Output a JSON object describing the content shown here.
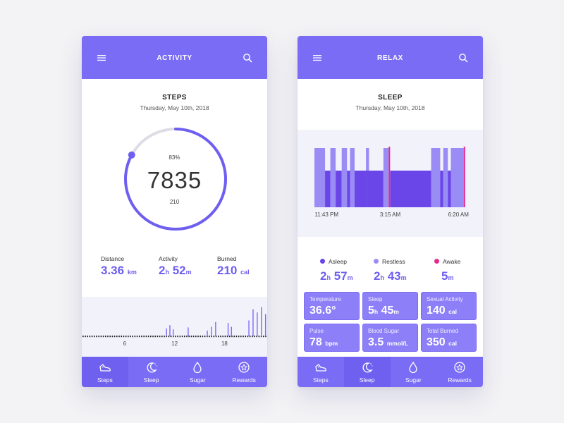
{
  "colors": {
    "accent": "#7b6cf6",
    "value": "#6e5ff0",
    "awake": "#e52a8c",
    "asleep": "#6a45e8",
    "restless": "#9a8cf5"
  },
  "activity": {
    "title": "ACTIVITY",
    "section_title": "STEPS",
    "date": "Thursday, May 10th, 2018",
    "ring": {
      "percent_label": "83%",
      "value": "7835",
      "sub": "210",
      "progress": 0.83
    },
    "stats": [
      {
        "label": "Distance",
        "value": "3.36",
        "unit": "km"
      },
      {
        "label": "Activity",
        "h": "2",
        "h_unit": "h",
        "m": "52",
        "m_unit": "m"
      },
      {
        "label": "Burned",
        "value": "210",
        "unit": "cal"
      }
    ],
    "chart": {
      "ticks": [
        "6",
        "12",
        "18"
      ],
      "bars": [
        {
          "hour": 10.3,
          "v": 0.25
        },
        {
          "hour": 10.7,
          "v": 0.35
        },
        {
          "hour": 11.1,
          "v": 0.22
        },
        {
          "hour": 12.9,
          "v": 0.28
        },
        {
          "hour": 15.2,
          "v": 0.18
        },
        {
          "hour": 15.7,
          "v": 0.3
        },
        {
          "hour": 16.2,
          "v": 0.45
        },
        {
          "hour": 17.7,
          "v": 0.42
        },
        {
          "hour": 18.1,
          "v": 0.3
        },
        {
          "hour": 20.2,
          "v": 0.5
        },
        {
          "hour": 20.7,
          "v": 0.85
        },
        {
          "hour": 21.2,
          "v": 0.75
        },
        {
          "hour": 21.7,
          "v": 0.92
        },
        {
          "hour": 22.2,
          "v": 0.7
        },
        {
          "hour": 22.7,
          "v": 0.78
        },
        {
          "hour": 23.2,
          "v": 0.65
        }
      ]
    }
  },
  "relax": {
    "title": "RELAX",
    "section_title": "SLEEP",
    "date": "Thursday, May 10th, 2018",
    "chart": {
      "ticks": [
        "11:43 PM",
        "3:15 AM",
        "6:20 AM"
      ],
      "segments": [
        {
          "from": 0.0,
          "to": 0.07,
          "state": "restless"
        },
        {
          "from": 0.07,
          "to": 0.105,
          "state": "asleep"
        },
        {
          "from": 0.105,
          "to": 0.14,
          "state": "restless"
        },
        {
          "from": 0.14,
          "to": 0.18,
          "state": "asleep"
        },
        {
          "from": 0.18,
          "to": 0.215,
          "state": "restless"
        },
        {
          "from": 0.215,
          "to": 0.235,
          "state": "asleep"
        },
        {
          "from": 0.235,
          "to": 0.265,
          "state": "restless"
        },
        {
          "from": 0.265,
          "to": 0.34,
          "state": "asleep"
        },
        {
          "from": 0.34,
          "to": 0.36,
          "state": "restless"
        },
        {
          "from": 0.36,
          "to": 0.34,
          "state": "asleep"
        },
        {
          "from": 0.34,
          "to": 0.455,
          "state": "asleep"
        },
        {
          "from": 0.455,
          "to": 0.49,
          "state": "restless"
        },
        {
          "from": 0.49,
          "to": 0.5,
          "state": "awake"
        },
        {
          "from": 0.5,
          "to": 0.77,
          "state": "asleep"
        },
        {
          "from": 0.77,
          "to": 0.83,
          "state": "restless"
        },
        {
          "from": 0.83,
          "to": 0.85,
          "state": "asleep"
        },
        {
          "from": 0.85,
          "to": 0.88,
          "state": "restless"
        },
        {
          "from": 0.88,
          "to": 0.9,
          "state": "asleep"
        },
        {
          "from": 0.9,
          "to": 0.985,
          "state": "restless"
        },
        {
          "from": 0.985,
          "to": 1.0,
          "state": "awake"
        }
      ]
    },
    "legend": [
      {
        "label": "Asleep",
        "h": "2",
        "h_unit": "h",
        "m": "57",
        "m_unit": "m",
        "color": "#6a45e8"
      },
      {
        "label": "Restless",
        "h": "2",
        "h_unit": "h",
        "m": "43",
        "m_unit": "m",
        "color": "#9a8cf5"
      },
      {
        "label": "Awake",
        "h": "",
        "h_unit": "",
        "m": "5",
        "m_unit": "m",
        "color": "#e52a8c"
      }
    ],
    "cards": [
      {
        "title": "Temperature",
        "value": "36.6°",
        "unit": ""
      },
      {
        "title": "Sleep",
        "value": "5",
        "unit": "h",
        "value2": "45",
        "unit2": "m"
      },
      {
        "title": "Sexual Activity",
        "value": "140",
        "unit": "cal"
      },
      {
        "title": "Pulse",
        "value": "78",
        "unit": "bpm"
      },
      {
        "title": "Blood Sugar",
        "value": "3.5",
        "unit": "mmol/L"
      },
      {
        "title": "Total Burned",
        "value": "350",
        "unit": "cal"
      }
    ]
  },
  "nav": {
    "items": [
      {
        "label": "Steps",
        "icon": "shoe-icon"
      },
      {
        "label": "Sleep",
        "icon": "moon-icon"
      },
      {
        "label": "Sugar",
        "icon": "drop-icon"
      },
      {
        "label": "Rewards",
        "icon": "medal-icon"
      }
    ]
  }
}
